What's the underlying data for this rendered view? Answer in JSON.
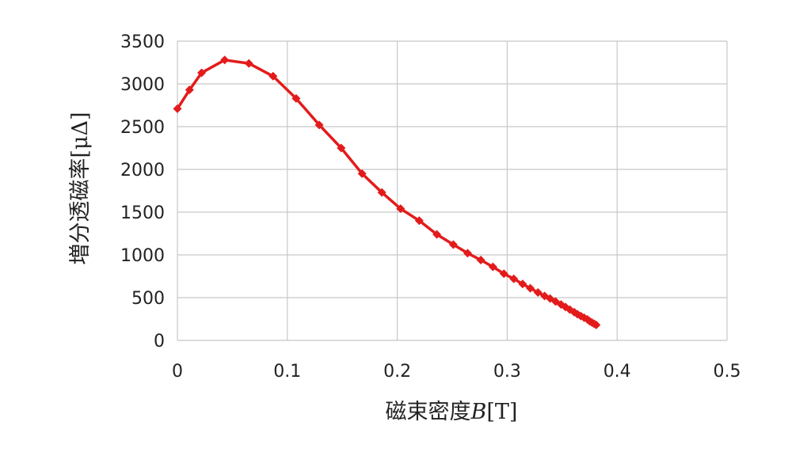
{
  "chart_data": {
    "type": "line",
    "title": "",
    "xlabel": "磁束密度",
    "xlabel_symbol": "B",
    "xlabel_unit": "[T]",
    "ylabel": "増分透磁率",
    "ylabel_unit": "[μΔ]",
    "xlim": [
      0,
      0.5
    ],
    "ylim": [
      0,
      3500
    ],
    "xticks": [
      "0",
      "0.1",
      "0.2",
      "0.3",
      "0.4",
      "0.5"
    ],
    "yticks": [
      "0",
      "500",
      "1000",
      "1500",
      "2000",
      "2500",
      "3000",
      "3500"
    ],
    "grid": true,
    "legend": "none",
    "color": "#e31b1b",
    "marker": "diamond",
    "series": [
      {
        "x": [
          0.0,
          0.011,
          0.022,
          0.043,
          0.065,
          0.087,
          0.108,
          0.129,
          0.149,
          0.168,
          0.186,
          0.203,
          0.22,
          0.236,
          0.251,
          0.264,
          0.276,
          0.287,
          0.297,
          0.306,
          0.314,
          0.321,
          0.328,
          0.334,
          0.339,
          0.344,
          0.349,
          0.353,
          0.357,
          0.361,
          0.364,
          0.367,
          0.37,
          0.373,
          0.375,
          0.377,
          0.379,
          0.381
        ],
        "y": [
          2710,
          2930,
          3130,
          3280,
          3240,
          3090,
          2830,
          2520,
          2250,
          1950,
          1730,
          1540,
          1400,
          1240,
          1120,
          1020,
          940,
          860,
          780,
          720,
          660,
          610,
          560,
          520,
          490,
          455,
          420,
          390,
          360,
          330,
          305,
          285,
          265,
          245,
          225,
          210,
          195,
          180
        ]
      }
    ]
  }
}
